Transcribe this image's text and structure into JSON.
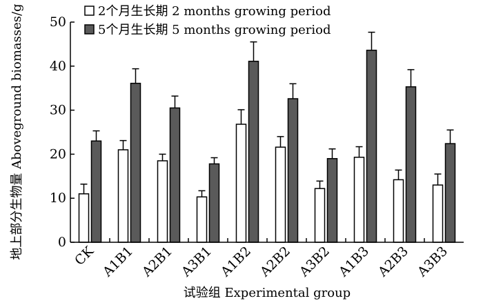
{
  "chart_data": {
    "type": "bar",
    "categories": [
      "CK",
      "A1B1",
      "A2B1",
      "A3B1",
      "A1B2",
      "A2B2",
      "A3B2",
      "A1B3",
      "A2B3",
      "A3B3"
    ],
    "series": [
      {
        "name": "2个月生长期 2 months growing period",
        "color": "#ffffff",
        "values": [
          11.0,
          21.0,
          18.5,
          10.3,
          26.8,
          21.6,
          12.2,
          19.3,
          14.2,
          13.0
        ],
        "errors": [
          2.2,
          2.1,
          1.5,
          1.4,
          3.3,
          2.4,
          1.7,
          2.4,
          2.2,
          2.5
        ]
      },
      {
        "name": "5个月生长期 5 months growing period",
        "color": "#5a5a5a",
        "values": [
          23.0,
          36.1,
          30.5,
          17.8,
          41.1,
          32.6,
          19.0,
          43.6,
          35.3,
          22.4
        ],
        "errors": [
          2.3,
          3.3,
          2.7,
          1.4,
          4.4,
          3.4,
          2.2,
          4.1,
          3.9,
          3.1
        ]
      }
    ],
    "ylabel": "地上部分生物量 Aboveground biomasses/g",
    "xlabel": "试验组 Experimental group",
    "ylim": [
      0,
      50
    ],
    "yticks": [
      0,
      10,
      20,
      30,
      40,
      50
    ],
    "grid": false,
    "legend_position": "top-left"
  }
}
